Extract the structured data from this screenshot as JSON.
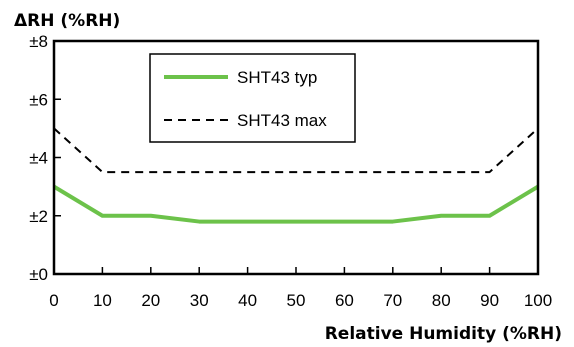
{
  "chart_data": {
    "type": "line",
    "title": "",
    "ylabel": "ΔRH (%RH)",
    "xlabel": "Relative Humidity (%RH)",
    "xlim": [
      0,
      100
    ],
    "ylim": [
      0,
      8
    ],
    "x_ticks": [
      0,
      10,
      20,
      30,
      40,
      50,
      60,
      70,
      80,
      90,
      100
    ],
    "x_tick_labels": [
      "0",
      "10",
      "20",
      "30",
      "40",
      "50",
      "60",
      "70",
      "80",
      "90",
      "100"
    ],
    "y_ticks": [
      0,
      2,
      4,
      6,
      8
    ],
    "y_tick_labels": [
      "±0",
      "±2",
      "±4",
      "±6",
      "±8"
    ],
    "grid": false,
    "legend_position": "top-left",
    "series": [
      {
        "name": "SHT43 typ",
        "style": "solid",
        "color": "#6cc24a",
        "x": [
          0,
          10,
          20,
          30,
          40,
          50,
          60,
          70,
          80,
          90,
          100
        ],
        "y": [
          3,
          2,
          2,
          1.8,
          1.8,
          1.8,
          1.8,
          1.8,
          2,
          2,
          3
        ]
      },
      {
        "name": "SHT43 max",
        "style": "dashed",
        "color": "#000000",
        "x": [
          0,
          10,
          20,
          30,
          40,
          50,
          60,
          70,
          80,
          90,
          100
        ],
        "y": [
          5,
          3.5,
          3.5,
          3.5,
          3.5,
          3.5,
          3.5,
          3.5,
          3.5,
          3.5,
          5
        ]
      }
    ]
  }
}
